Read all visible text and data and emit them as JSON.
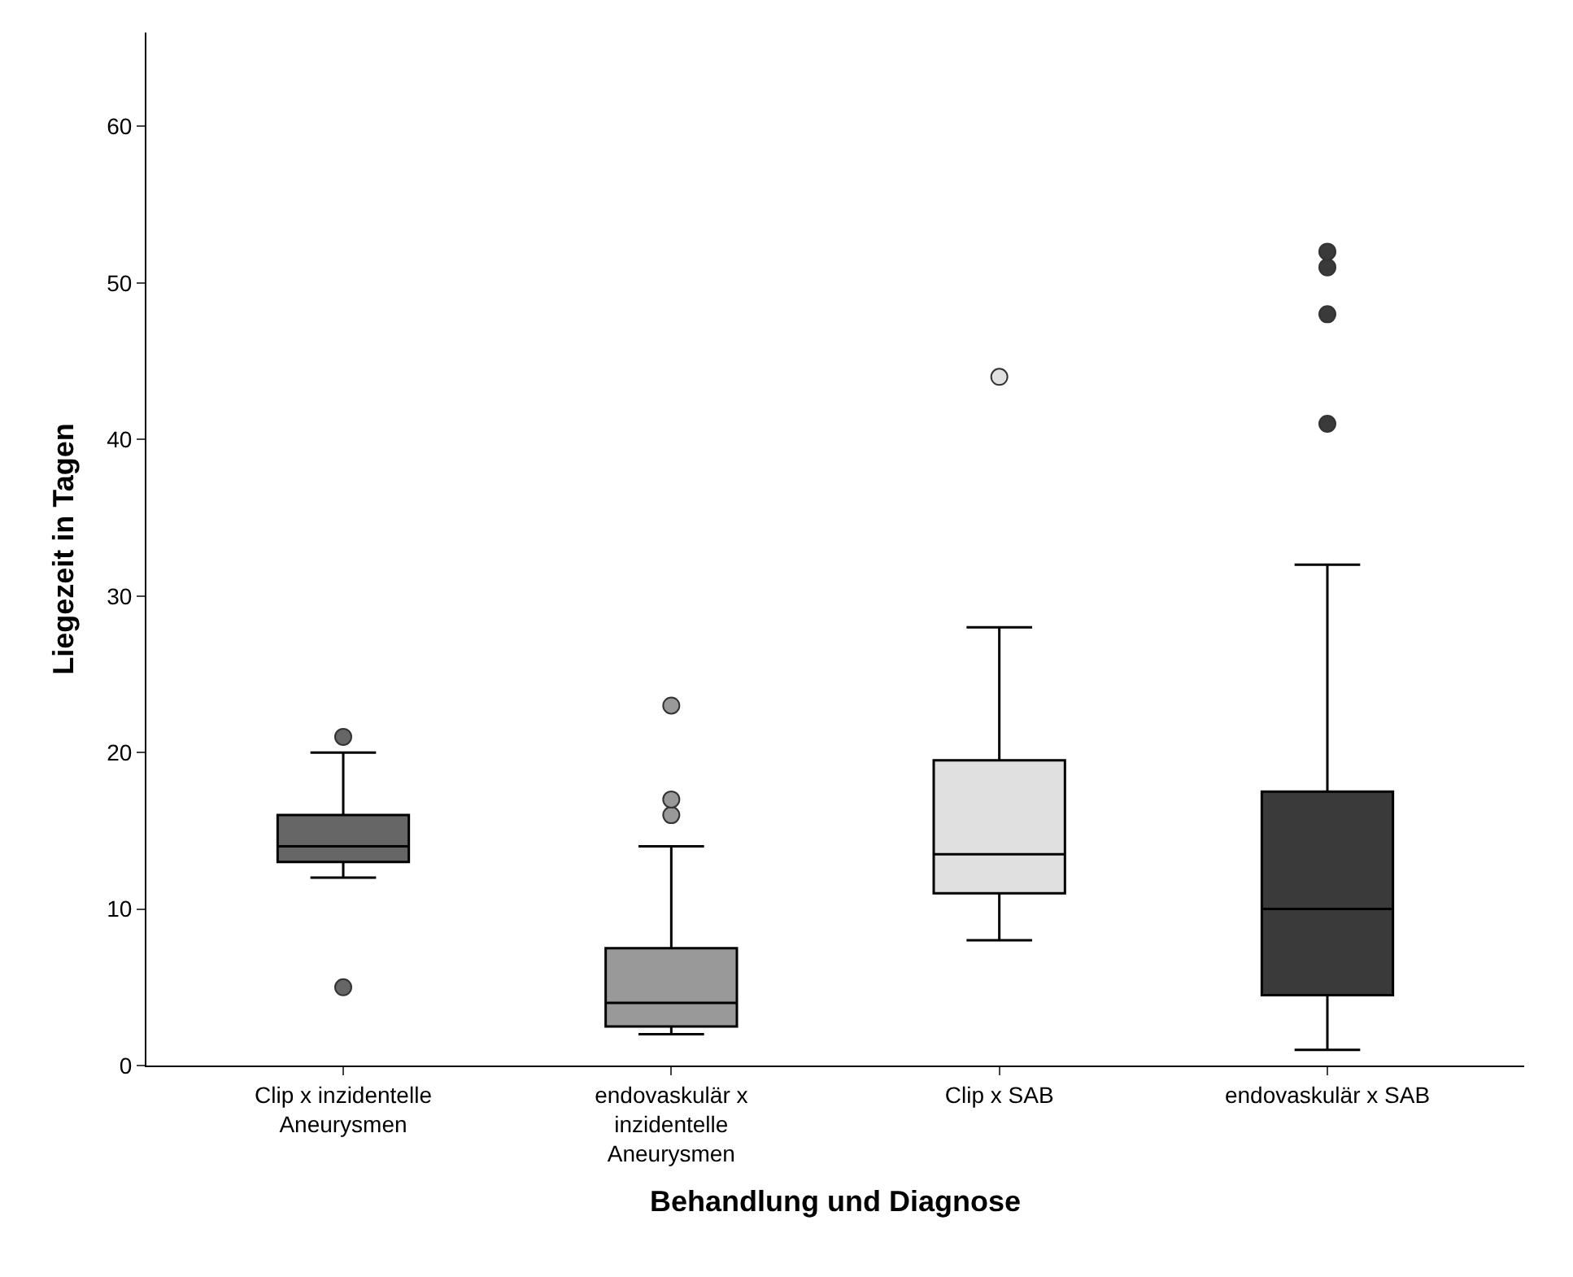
{
  "chart_data": {
    "type": "box",
    "xlabel": "Behandlung und Diagnose",
    "ylabel": "Liegezeit in Tagen",
    "categories": [
      "Clip x inzidentelle\nAneurysmen",
      "endovaskulär x\ninzidentelle\nAneurysmen",
      "Clip x SAB",
      "endovaskulär x SAB"
    ],
    "colors": [
      "#666666",
      "#999999",
      "#e0e0e0",
      "#3a3a3a"
    ],
    "boxes": [
      {
        "low": 12,
        "q1": 13,
        "median": 14,
        "q3": 16,
        "high": 20,
        "outliers": [
          21,
          5
        ]
      },
      {
        "low": 2,
        "q1": 2.5,
        "median": 4,
        "q3": 7.5,
        "high": 14,
        "outliers": [
          16,
          17,
          23
        ]
      },
      {
        "low": 8,
        "q1": 11,
        "median": 13.5,
        "q3": 19.5,
        "high": 28,
        "outliers": [
          44
        ]
      },
      {
        "low": 1,
        "q1": 4.5,
        "median": 10,
        "q3": 17.5,
        "high": 32,
        "outliers": [
          41,
          48,
          51,
          52
        ]
      }
    ],
    "ylim": [
      0,
      66
    ],
    "yticks": [
      0,
      10,
      20,
      30,
      40,
      50,
      60
    ]
  }
}
